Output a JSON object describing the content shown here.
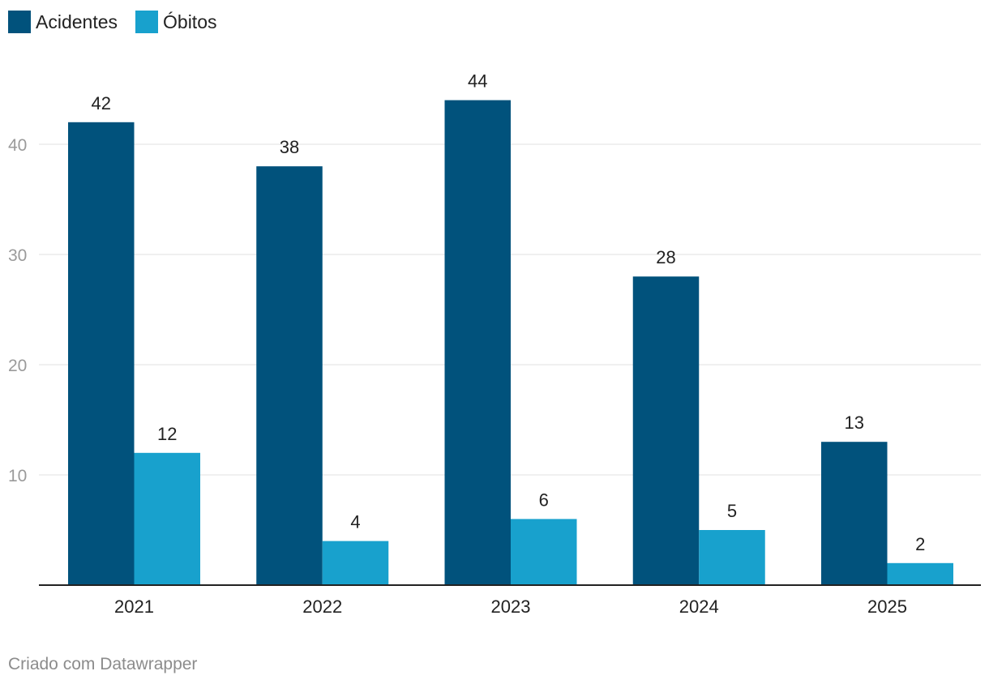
{
  "legend": [
    {
      "label": "Acidentes",
      "color": "#01527c"
    },
    {
      "label": "Óbitos",
      "color": "#18a1cd"
    }
  ],
  "chart_data": {
    "type": "bar",
    "categories": [
      "2021",
      "2022",
      "2023",
      "2024",
      "2025"
    ],
    "series": [
      {
        "name": "Acidentes",
        "values": [
          42,
          38,
          44,
          28,
          13
        ],
        "color": "#01527c"
      },
      {
        "name": "Óbitos",
        "values": [
          12,
          4,
          6,
          5,
          2
        ],
        "color": "#18a1cd"
      }
    ],
    "y_ticks": [
      "10",
      "20",
      "30",
      "40"
    ],
    "ylim": [
      0,
      44
    ],
    "grid": true,
    "legend_position": "top-left"
  },
  "footer": {
    "text": "Criado com Datawrapper"
  }
}
